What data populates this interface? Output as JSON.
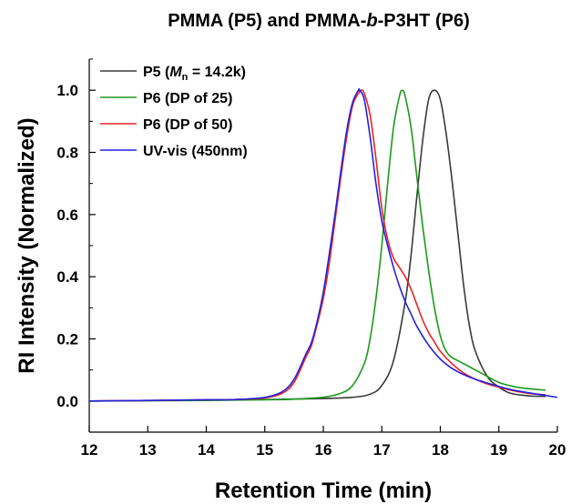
{
  "chart_data": {
    "type": "line",
    "title_parts": {
      "a": "PMMA (P5) and PMMA-",
      "b": "b",
      "c": "-P3HT (P6)"
    },
    "xlabel": "Retention Time (min)",
    "ylabel": "RI Intensity (Normalized)",
    "xlim": [
      12,
      20
    ],
    "ylim": [
      -0.1,
      1.1
    ],
    "xticks": [
      "12",
      "13",
      "14",
      "15",
      "16",
      "17",
      "18",
      "19",
      "20"
    ],
    "yticks": [
      "0.0",
      "0.2",
      "0.4",
      "0.6",
      "0.8",
      "1.0"
    ],
    "grid": false,
    "legend_position": "top-left",
    "legend": {
      "p5": {
        "prefix": "P5 (",
        "m": "M",
        "sub": "n",
        "suffix": " = 14.2k)"
      }
    },
    "series": [
      {
        "name": "P5 (Mn = 14.2k)",
        "color": "#3a3a3a",
        "x": [
          12.0,
          14.0,
          15.0,
          16.0,
          16.5,
          16.8,
          17.0,
          17.2,
          17.4,
          17.5,
          17.6,
          17.7,
          17.8,
          17.9,
          18.0,
          18.1,
          18.2,
          18.3,
          18.4,
          18.5,
          18.6,
          18.8,
          19.0,
          19.2,
          19.5,
          19.8
        ],
        "values": [
          0.0,
          0.003,
          0.005,
          0.008,
          0.012,
          0.022,
          0.05,
          0.13,
          0.32,
          0.47,
          0.66,
          0.84,
          0.97,
          1.0,
          0.97,
          0.86,
          0.71,
          0.54,
          0.37,
          0.24,
          0.16,
          0.08,
          0.045,
          0.025,
          0.017,
          0.015
        ]
      },
      {
        "name": "P6 (DP of 25)",
        "color": "#1a9a1a",
        "x": [
          12.0,
          14.0,
          15.0,
          15.5,
          16.0,
          16.3,
          16.5,
          16.7,
          16.8,
          16.9,
          17.0,
          17.1,
          17.2,
          17.3,
          17.35,
          17.4,
          17.5,
          17.6,
          17.7,
          17.8,
          17.9,
          18.0,
          18.1,
          18.2,
          18.3,
          18.5,
          18.7,
          19.0,
          19.3,
          19.5,
          19.8
        ],
        "values": [
          0.0,
          0.002,
          0.004,
          0.006,
          0.012,
          0.025,
          0.05,
          0.12,
          0.2,
          0.33,
          0.5,
          0.7,
          0.88,
          0.98,
          1.0,
          0.98,
          0.88,
          0.72,
          0.56,
          0.42,
          0.3,
          0.21,
          0.16,
          0.14,
          0.13,
          0.11,
          0.09,
          0.06,
          0.045,
          0.04,
          0.035
        ]
      },
      {
        "name": "P6 (DP of 50)",
        "color": "#ee2222",
        "x": [
          12.0,
          13.0,
          14.0,
          14.5,
          15.0,
          15.3,
          15.5,
          15.7,
          15.8,
          15.9,
          16.0,
          16.1,
          16.2,
          16.3,
          16.4,
          16.5,
          16.6,
          16.65,
          16.7,
          16.8,
          16.9,
          17.0,
          17.1,
          17.2,
          17.3,
          17.4,
          17.5,
          17.6,
          17.7,
          17.8,
          17.9,
          18.0,
          18.2,
          18.4,
          18.6,
          18.8,
          19.0,
          19.2,
          19.5,
          19.8
        ],
        "values": [
          0.0,
          0.002,
          0.004,
          0.005,
          0.01,
          0.025,
          0.06,
          0.14,
          0.18,
          0.25,
          0.33,
          0.44,
          0.58,
          0.72,
          0.85,
          0.95,
          0.99,
          1.0,
          0.99,
          0.92,
          0.78,
          0.62,
          0.52,
          0.46,
          0.43,
          0.4,
          0.36,
          0.31,
          0.26,
          0.22,
          0.19,
          0.16,
          0.12,
          0.09,
          0.07,
          0.055,
          0.045,
          0.035,
          0.025,
          0.02
        ]
      },
      {
        "name": "UV-vis (450nm)",
        "color": "#2222dd",
        "x": [
          12.0,
          13.0,
          14.0,
          14.5,
          15.0,
          15.3,
          15.5,
          15.7,
          15.8,
          15.9,
          16.0,
          16.1,
          16.2,
          16.3,
          16.4,
          16.5,
          16.6,
          16.62,
          16.7,
          16.8,
          16.9,
          17.0,
          17.1,
          17.2,
          17.3,
          17.4,
          17.5,
          17.6,
          17.8,
          18.0,
          18.2,
          18.4,
          18.6,
          18.8,
          19.0,
          19.2,
          19.5,
          20.0
        ],
        "values": [
          0.0,
          0.002,
          0.004,
          0.005,
          0.012,
          0.03,
          0.07,
          0.15,
          0.19,
          0.26,
          0.35,
          0.47,
          0.6,
          0.74,
          0.87,
          0.96,
          1.0,
          1.0,
          0.97,
          0.85,
          0.7,
          0.58,
          0.5,
          0.43,
          0.37,
          0.32,
          0.28,
          0.24,
          0.18,
          0.135,
          0.105,
          0.085,
          0.07,
          0.058,
          0.047,
          0.037,
          0.027,
          0.012
        ]
      }
    ]
  }
}
